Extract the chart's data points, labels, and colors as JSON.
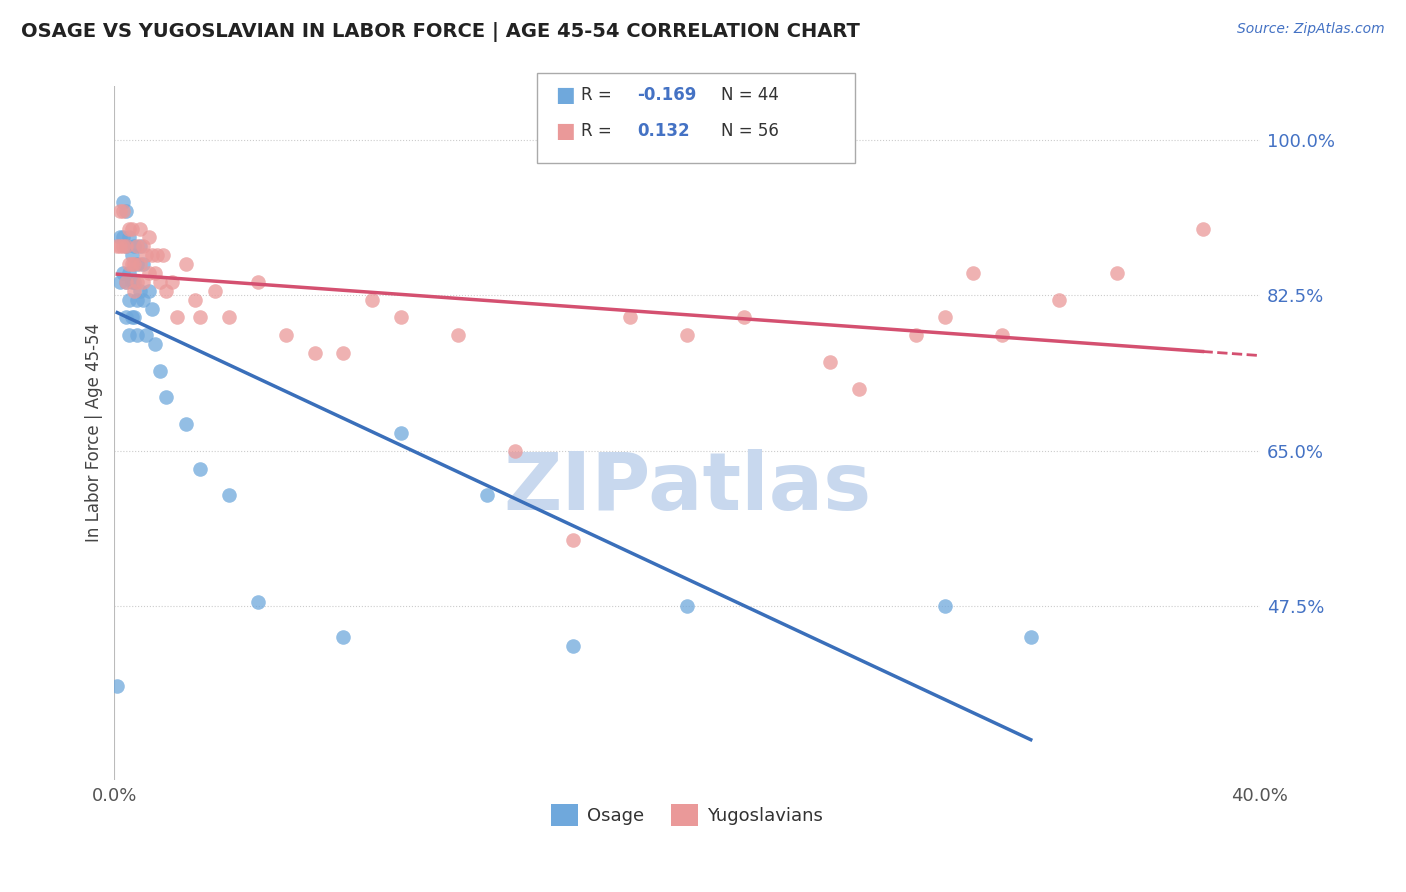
{
  "title": "OSAGE VS YUGOSLAVIAN IN LABOR FORCE | AGE 45-54 CORRELATION CHART",
  "source_text": "Source: ZipAtlas.com",
  "ylabel": "In Labor Force | Age 45-54",
  "xlim": [
    0.0,
    0.4
  ],
  "ylim": [
    0.28,
    1.06
  ],
  "xticks": [
    0.0,
    0.1,
    0.2,
    0.3,
    0.4
  ],
  "xticklabels": [
    "0.0%",
    "",
    "",
    "",
    "40.0%"
  ],
  "yticks": [
    0.475,
    0.65,
    0.825,
    1.0
  ],
  "yticklabels": [
    "47.5%",
    "65.0%",
    "82.5%",
    "100.0%"
  ],
  "R_osage": -0.169,
  "N_osage": 44,
  "R_yugo": 0.132,
  "N_yugo": 56,
  "osage_color": "#6fa8dc",
  "yugo_color": "#ea9999",
  "osage_line_color": "#3a6fba",
  "yugo_line_color": "#d45070",
  "watermark_text": "ZIPatlas",
  "watermark_color": "#c8d8ee",
  "background_color": "#ffffff",
  "grid_color": "#cccccc",
  "osage_x": [
    0.001,
    0.002,
    0.002,
    0.003,
    0.003,
    0.003,
    0.004,
    0.004,
    0.004,
    0.004,
    0.005,
    0.005,
    0.005,
    0.005,
    0.006,
    0.006,
    0.006,
    0.007,
    0.007,
    0.007,
    0.008,
    0.008,
    0.008,
    0.009,
    0.009,
    0.01,
    0.01,
    0.011,
    0.012,
    0.013,
    0.014,
    0.016,
    0.018,
    0.025,
    0.03,
    0.04,
    0.05,
    0.08,
    0.1,
    0.13,
    0.16,
    0.2,
    0.29,
    0.32
  ],
  "osage_y": [
    0.385,
    0.89,
    0.84,
    0.93,
    0.89,
    0.85,
    0.92,
    0.88,
    0.84,
    0.8,
    0.89,
    0.85,
    0.82,
    0.78,
    0.87,
    0.84,
    0.8,
    0.88,
    0.84,
    0.8,
    0.86,
    0.82,
    0.78,
    0.88,
    0.83,
    0.86,
    0.82,
    0.78,
    0.83,
    0.81,
    0.77,
    0.74,
    0.71,
    0.68,
    0.63,
    0.6,
    0.48,
    0.44,
    0.67,
    0.6,
    0.43,
    0.475,
    0.475,
    0.44
  ],
  "yugo_x": [
    0.001,
    0.002,
    0.002,
    0.003,
    0.003,
    0.004,
    0.004,
    0.005,
    0.005,
    0.006,
    0.006,
    0.007,
    0.007,
    0.008,
    0.008,
    0.009,
    0.009,
    0.01,
    0.01,
    0.011,
    0.012,
    0.012,
    0.013,
    0.014,
    0.015,
    0.016,
    0.017,
    0.018,
    0.02,
    0.022,
    0.025,
    0.028,
    0.03,
    0.035,
    0.04,
    0.05,
    0.06,
    0.07,
    0.08,
    0.09,
    0.1,
    0.12,
    0.14,
    0.16,
    0.18,
    0.2,
    0.22,
    0.25,
    0.26,
    0.28,
    0.29,
    0.3,
    0.31,
    0.33,
    0.35,
    0.38
  ],
  "yugo_y": [
    0.88,
    0.92,
    0.88,
    0.92,
    0.88,
    0.88,
    0.84,
    0.9,
    0.86,
    0.9,
    0.86,
    0.86,
    0.83,
    0.88,
    0.84,
    0.9,
    0.86,
    0.88,
    0.84,
    0.87,
    0.89,
    0.85,
    0.87,
    0.85,
    0.87,
    0.84,
    0.87,
    0.83,
    0.84,
    0.8,
    0.86,
    0.82,
    0.8,
    0.83,
    0.8,
    0.84,
    0.78,
    0.76,
    0.76,
    0.82,
    0.8,
    0.78,
    0.65,
    0.55,
    0.8,
    0.78,
    0.8,
    0.75,
    0.72,
    0.78,
    0.8,
    0.85,
    0.78,
    0.82,
    0.85,
    0.9
  ]
}
